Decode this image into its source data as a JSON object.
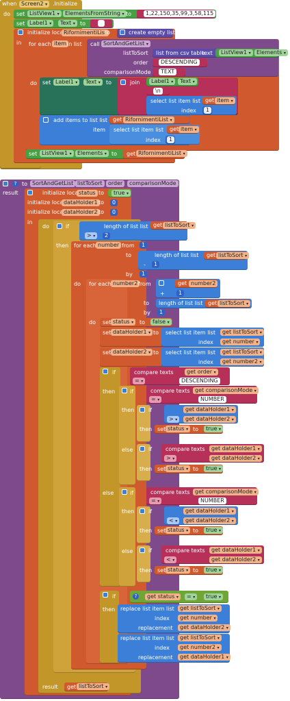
{
  "screen_init": {
    "when": "when",
    "component": "Screen2",
    "event": ".Initialize",
    "do": "do",
    "set1": {
      "set": "set",
      "comp": "ListView1",
      "prop": "ElementsFromString",
      "to": "to",
      "value": "1,22,150,35,99,3,58,115"
    },
    "set2": {
      "set": "set",
      "comp": "Label1",
      "prop": "Text",
      "to": "to",
      "value": ""
    },
    "local": {
      "label": "initialize local",
      "name": "RifornimentiList",
      "to": "to",
      "value": "create empty list"
    },
    "in": "in",
    "foreach": {
      "label": "for each",
      "var": "item",
      "in_list": "in list",
      "call": "call",
      "proc": "SortAndGetList",
      "arg1": "listToSort",
      "csv": "list from csv table",
      "text": "text",
      "comp": "ListView1",
      "prop": "Elements",
      "arg2": "order",
      "order_val": "DESCENDING",
      "arg3": "comparisonMode",
      "mode_val": "TEXT"
    },
    "do2": "do",
    "setlabel": {
      "set": "set",
      "comp": "Label1",
      "prop": "Text",
      "to": "to",
      "join": "join",
      "comp2": "Label1",
      "prop2": "Text",
      "newline": "\\n",
      "select": "select list item  list",
      "get": "get",
      "var": "item",
      "index": "index",
      "idx": "1"
    },
    "add": {
      "label": "add items to list  list",
      "get": "get",
      "list": "RifornimentiList",
      "item": "item",
      "select": "select list item  list",
      "get2": "get",
      "var": "item",
      "index": "index",
      "idx": "1"
    },
    "setlv": {
      "set": "set",
      "comp": "ListView1",
      "prop": "Elements",
      "to": "to",
      "get": "get",
      "var": "RifornimentiList"
    }
  },
  "proc": {
    "to": "to",
    "name": "SortAndGetList",
    "p1": "listToSort",
    "p2": "order",
    "p3": "comparisonMode",
    "result": "result",
    "loc1": {
      "label": "initialize local",
      "name": "status",
      "to": "to",
      "val": "true"
    },
    "loc2": {
      "label": "initialize local",
      "name": "dataHolder1",
      "to": "to",
      "val": "0"
    },
    "loc3": {
      "label": "initialize local",
      "name": "dataHolder2",
      "to": "to",
      "val": "0"
    },
    "in": "in",
    "do": "do",
    "if": "if",
    "then": "then",
    "else": "else",
    "len": "length of list  list",
    "get": "get",
    "lts": "listToSort",
    "gt": ">",
    "two": "2",
    "fe1": {
      "label": "for each",
      "var": "number",
      "from": "from",
      "one": "1",
      "to": "to",
      "minus": "-",
      "by": "by"
    },
    "fe2": {
      "label": "for each",
      "var": "number2",
      "from": "from",
      "plus": "+",
      "one": "1",
      "to": "to",
      "by": "by"
    },
    "setstatus": {
      "set": "set",
      "var": "status",
      "to": "to",
      "val": "false",
      "val2": "true"
    },
    "setdh": {
      "set": "set",
      "dh1": "dataHolder1",
      "dh2": "dataHolder2",
      "to": "to",
      "select": "select list item  list",
      "index": "index",
      "num": "number",
      "num2": "number2"
    },
    "cmp": {
      "label": "compare texts",
      "order": "order",
      "eq": "=",
      "desc": "DESCENDING",
      "mode": "comparisonMode",
      "number": "NUMBER",
      "gt": ">",
      "lt": "<"
    },
    "replace": {
      "label": "replace list item  list",
      "index": "index",
      "replacement": "replacement"
    },
    "statuseq": "="
  }
}
